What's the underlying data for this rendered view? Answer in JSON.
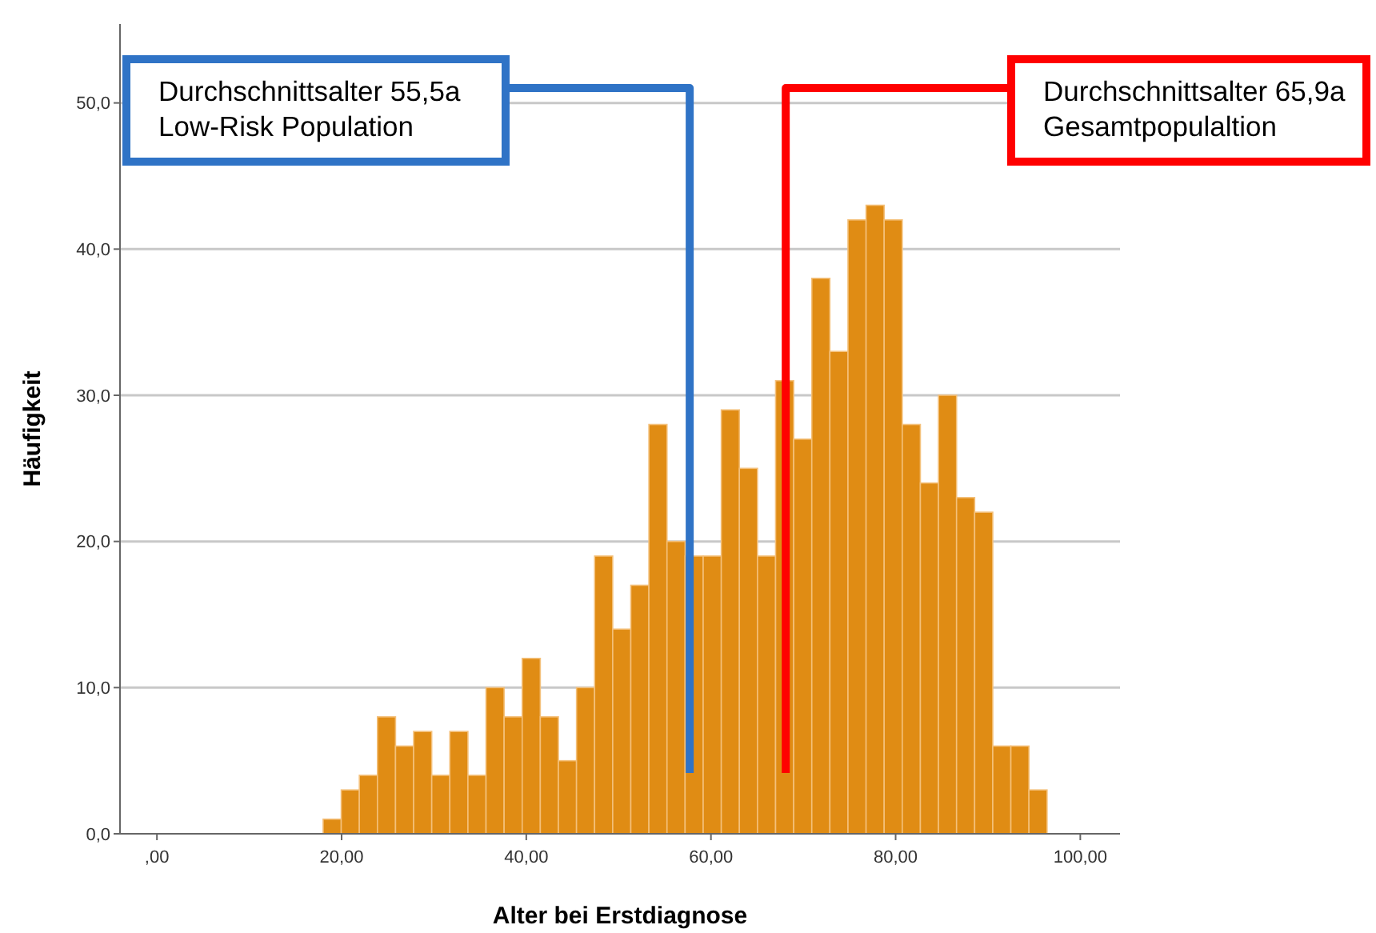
{
  "chart_data": {
    "type": "histogram",
    "xlabel": "Alter bei Erstdiagnose",
    "ylabel": "Häufigkeit",
    "color": "#e08c14",
    "bins": [
      18,
      19.96,
      21.92,
      23.88,
      25.84,
      27.8,
      29.76,
      31.72,
      33.68,
      35.64,
      37.6,
      39.56,
      41.52,
      43.48,
      45.44,
      47.4,
      49.36,
      51.32,
      53.28,
      55.24,
      57.2,
      59.16,
      61.12,
      63.08,
      65.04,
      67,
      68.96,
      70.92,
      72.88,
      74.84,
      76.8,
      78.76,
      80.72,
      82.68,
      84.64,
      86.6,
      88.56,
      90.52,
      92.48,
      94.44,
      96.4
    ],
    "values": [
      1,
      3,
      4,
      8,
      6,
      7,
      4,
      7,
      4,
      10,
      8,
      12,
      8,
      5,
      10,
      19,
      14,
      17,
      28,
      20,
      19,
      19,
      29,
      25,
      19,
      31,
      27,
      38,
      33,
      42,
      43,
      42,
      28,
      24,
      30,
      23,
      22,
      6,
      6,
      3
    ],
    "xlim": [
      -4,
      104.3
    ],
    "ylim": [
      0,
      55.4
    ],
    "xticks": [
      {
        "value": 0,
        "label": ",00"
      },
      {
        "value": 20,
        "label": "20,00"
      },
      {
        "value": 40,
        "label": "40,00"
      },
      {
        "value": 60,
        "label": "60,00"
      },
      {
        "value": 80,
        "label": "80,00"
      },
      {
        "value": 100,
        "label": "100,00"
      }
    ],
    "yticks": [
      {
        "value": 0,
        "label": "0,0"
      },
      {
        "value": 10,
        "label": "10,0"
      },
      {
        "value": 20,
        "label": "20,0"
      },
      {
        "value": 30,
        "label": "30,0"
      },
      {
        "value": 40,
        "label": "40,0"
      },
      {
        "value": 50,
        "label": "50,0"
      }
    ],
    "grid": "y",
    "ref_lines": [
      {
        "axis": "x",
        "value": 57.7,
        "label": "Durchschnittsalter 55,5a\nLow-Risk Population",
        "color": "#2f73c6"
      },
      {
        "axis": "x",
        "value": 68.1,
        "label": "Durchschnittsalter 65,9a\nGesamtpopulaltion",
        "color": "#ff0000"
      }
    ]
  }
}
